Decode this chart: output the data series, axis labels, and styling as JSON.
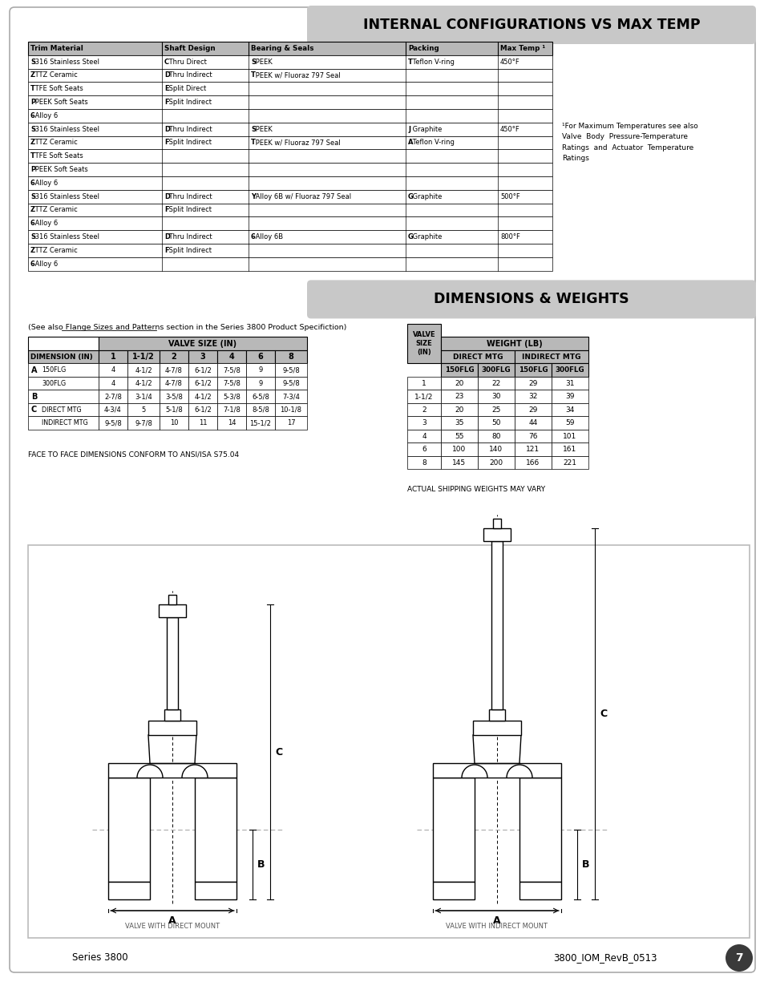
{
  "page_bg": "#ffffff",
  "header_bg": "#c8c8c8",
  "table_header_bg": "#b8b8b8",
  "section1_title": "INTERNAL CONFIGURATIONS VS MAX TEMP",
  "section2_title": "DIMENSIONS & WEIGHTS",
  "config_table_headers": [
    "Trim Material",
    "Shaft Design",
    "Bearing & Seals",
    "Packing",
    "Max Temp ¹"
  ],
  "config_table_rows": [
    [
      "S 316 Stainless Steel",
      "C Thru Direct",
      "S PEEK",
      "T Teflon V-ring",
      "450°F"
    ],
    [
      "Z TTZ Ceramic",
      "D Thru Indirect",
      "T PEEK w/ Fluoraz 797 Seal",
      "",
      ""
    ],
    [
      "T TFE Soft Seats",
      "E Split Direct",
      "",
      "",
      ""
    ],
    [
      "P PEEK Soft Seats",
      "F Split Indirect",
      "",
      "",
      ""
    ],
    [
      "6 Alloy 6",
      "",
      "",
      "",
      ""
    ],
    [
      "S 316 Stainless Steel",
      "D Thru Indirect",
      "S PEEK",
      "J Graphite",
      "450°F"
    ],
    [
      "Z TTZ Ceramic",
      "F Split Indirect",
      "T PEEK w/ Fluoraz 797 Seal",
      "A Teflon V-ring",
      ""
    ],
    [
      "T TFE Soft Seats",
      "",
      "",
      "",
      ""
    ],
    [
      "P PEEK Soft Seats",
      "",
      "",
      "",
      ""
    ],
    [
      "6 Alloy 6",
      "",
      "",
      "",
      ""
    ],
    [
      "S 316 Stainless Steel",
      "D Thru Indirect",
      "Y Alloy 6B w/ Fluoraz 797 Seal",
      "G Graphite",
      "500°F"
    ],
    [
      "Z TTZ Ceramic",
      "F Split Indirect",
      "",
      "",
      ""
    ],
    [
      "6 Alloy 6",
      "",
      "",
      "",
      ""
    ],
    [
      "S 316 Stainless Steel",
      "D Thru Indirect",
      "6 Alloy 6B",
      "G Graphite",
      "800°F"
    ],
    [
      "Z TTZ Ceramic",
      "F Split Indirect",
      "",
      "",
      ""
    ],
    [
      "6 Alloy 6",
      "",
      "",
      "",
      ""
    ]
  ],
  "footnote_lines": [
    "¹For Maximum Temperatures see also",
    "Valve  Body  Pressure-Temperature",
    "Ratings  and  Actuator  Temperature",
    "Ratings"
  ],
  "dim_subtitle": "(See also Flange Sizes and Patterns section in the Series 3800 Product Specifiction)",
  "dim_col_labels": [
    "DIMENSION (IN)",
    "1",
    "1-1/2",
    "2",
    "3",
    "4",
    "6",
    "8"
  ],
  "dim_rows": [
    [
      "A",
      "150FLG",
      "4",
      "4-1/2",
      "4-7/8",
      "6-1/2",
      "7-5/8",
      "9",
      "9-5/8"
    ],
    [
      "",
      "300FLG",
      "4",
      "4-1/2",
      "4-7/8",
      "6-1/2",
      "7-5/8",
      "9",
      "9-5/8"
    ],
    [
      "B",
      "",
      "2-7/8",
      "3-1/4",
      "3-5/8",
      "4-1/2",
      "5-3/8",
      "6-5/8",
      "7-3/4"
    ],
    [
      "C",
      "DIRECT MTG",
      "4-3/4",
      "5",
      "5-1/8",
      "6-1/2",
      "7-1/8",
      "8-5/8",
      "10-1/8"
    ],
    [
      "",
      "INDIRECT MTG",
      "9-5/8",
      "9-7/8",
      "10",
      "11",
      "14",
      "15-1/2",
      "17"
    ]
  ],
  "weight_subheaders": [
    "150FLG",
    "300FLG",
    "150FLG",
    "300FLG"
  ],
  "weight_rows": [
    [
      "1",
      "20",
      "22",
      "29",
      "31"
    ],
    [
      "1-1/2",
      "23",
      "30",
      "32",
      "39"
    ],
    [
      "2",
      "20",
      "25",
      "29",
      "34"
    ],
    [
      "3",
      "35",
      "50",
      "44",
      "59"
    ],
    [
      "4",
      "55",
      "80",
      "76",
      "101"
    ],
    [
      "6",
      "100",
      "140",
      "121",
      "161"
    ],
    [
      "8",
      "145",
      "200",
      "166",
      "221"
    ]
  ],
  "face_to_face": "FACE TO FACE DIMENSIONS CONFORM TO ANSI/ISA S75.04",
  "actual_shipping": "ACTUAL SHIPPING WEIGHTS MAY VARY",
  "footer_left": "Series 3800",
  "footer_right": "3800_IOM_RevB_0513",
  "footer_page": "7",
  "diag_left_label": "VALVE WITH DIRECT MOUNT",
  "diag_right_label": "VALVE WITH INDIRECT MOUNT"
}
